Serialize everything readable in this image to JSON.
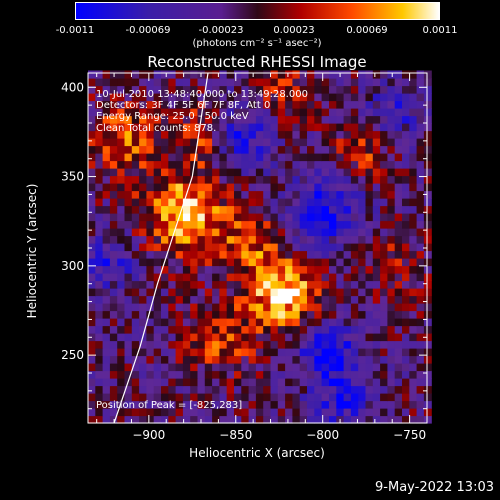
{
  "colorbar": {
    "ticks": [
      "-0.0011",
      "-0.00069",
      "-0.00023",
      "0.00023",
      "0.00069",
      "0.0011"
    ],
    "unit": "(photons cm⁻² s⁻¹ asec⁻²)"
  },
  "chart_data": {
    "type": "heatmap",
    "title": "Reconstructed RHESSI Image",
    "xlabel": "Heliocentric X (arcsec)",
    "ylabel": "Heliocentric Y (arcsec)",
    "xlim": [
      -935,
      -740
    ],
    "ylim": [
      212,
      408
    ],
    "xticks": [
      -900,
      -850,
      -800,
      -750
    ],
    "yticks": [
      250,
      300,
      350,
      400
    ],
    "xtick_labels": [
      "−900",
      "−850",
      "−800",
      "−750"
    ],
    "ytick_labels": [
      "250",
      "300",
      "350",
      "400"
    ],
    "colormap": "blue-purple-red-yellow-white",
    "value_range": [
      -0.0011,
      0.0011
    ],
    "peak": [
      -825,
      283
    ],
    "limb_curve": {
      "x": [
        -920,
        -905,
        -895,
        -885,
        -875,
        -866
      ],
      "y": [
        212,
        255,
        290,
        320,
        350,
        408
      ]
    },
    "annotations": [
      "10-Jul-2010 13:48:40.000 to 13:49:28.000",
      "Detectors: 3F 4F 5F 6F 7F 8F, Att 0",
      "Energy Range: 25.0 - 50.0 keV",
      "Clean     Total counts: 878."
    ],
    "peak_label": "Position of Peak = [-825,283]"
  },
  "footer": "9-May-2022 13:03"
}
